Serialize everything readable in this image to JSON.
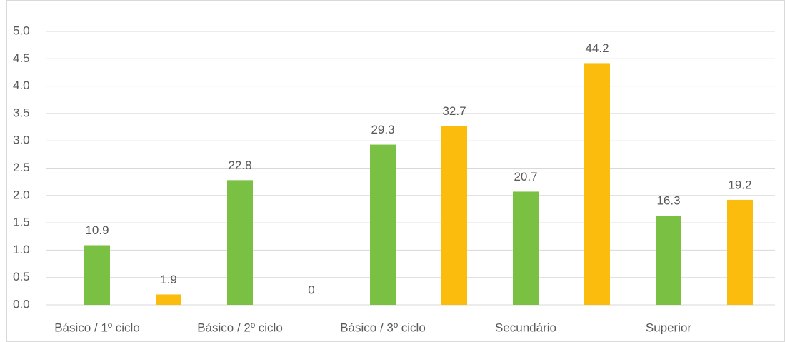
{
  "chart_data": {
    "type": "bar",
    "categories": [
      "Básico / 1º ciclo",
      "Básico / 2º ciclo",
      "Básico / 3º ciclo",
      "Secundário",
      "Superior"
    ],
    "series": [
      {
        "color": "#7ac143",
        "values": [
          1.09,
          2.28,
          2.93,
          2.07,
          1.63
        ],
        "value_labels": [
          "10.9",
          "22.8",
          "29.3",
          "20.7",
          "16.3"
        ]
      },
      {
        "color": "#fbbc0e",
        "values": [
          0.19,
          0,
          3.27,
          4.42,
          1.92
        ],
        "value_labels": [
          "1.9",
          "0",
          "32.7",
          "44.2",
          "19.2"
        ]
      }
    ],
    "ylim": [
      0,
      5
    ],
    "yticks": [
      {
        "value": 0,
        "label": "0.0"
      },
      0.5,
      {
        "value": 1,
        "label": "1.0"
      },
      1.5,
      {
        "value": 2,
        "label": "2.0"
      },
      2.5,
      {
        "value": 3,
        "label": "3.0"
      },
      3.5,
      {
        "value": 4,
        "label": "4.0"
      },
      4.5,
      {
        "value": 5,
        "label": "5.0"
      }
    ],
    "grid": true
  }
}
